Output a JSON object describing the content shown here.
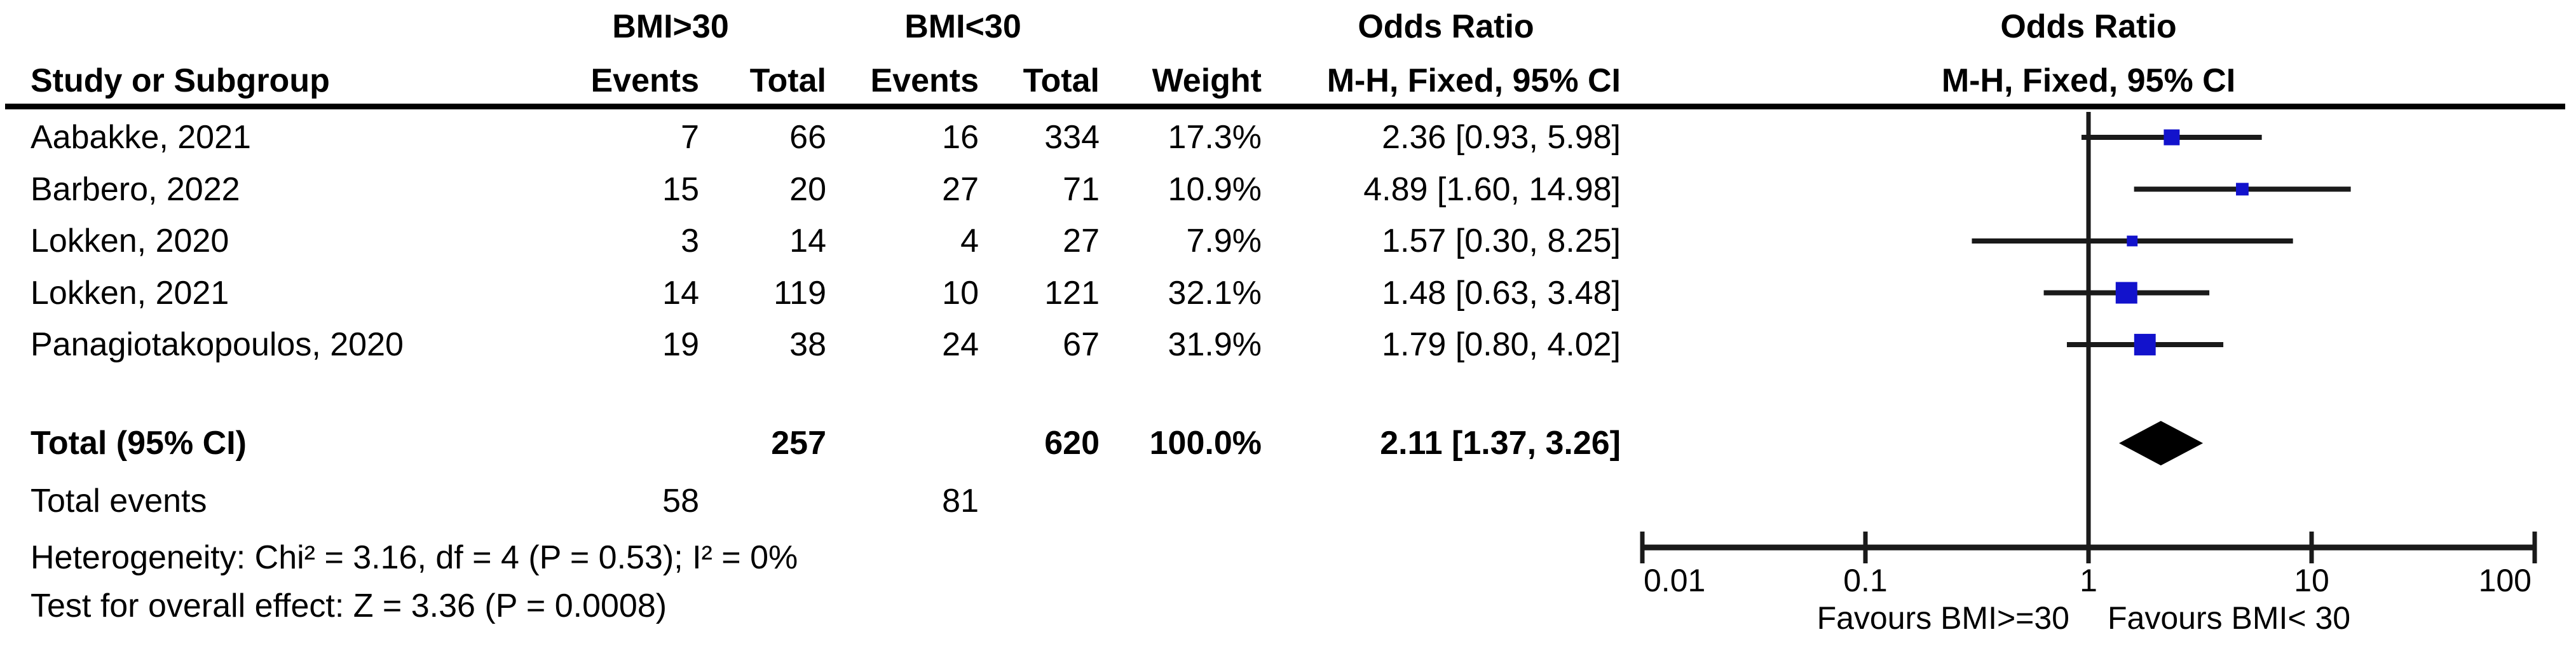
{
  "table": {
    "group1_label": "BMI>30",
    "group2_label": "BMI<30",
    "or_col_title": "Odds Ratio",
    "plot_col_title": "Odds Ratio",
    "method_label": "M-H, Fixed, 95% CI",
    "plot_method_label": "M-H, Fixed, 95% CI",
    "headers": {
      "study": "Study or Subgroup",
      "events1": "Events",
      "total1": "Total",
      "events2": "Events",
      "total2": "Total",
      "weight": "Weight"
    },
    "rows": [
      {
        "study": "Aabakke, 2021",
        "events1": "7",
        "total1": "66",
        "events2": "16",
        "total2": "334",
        "weight": "17.3%",
        "or_text": "2.36 [0.93, 5.98]"
      },
      {
        "study": "Barbero, 2022",
        "events1": "15",
        "total1": "20",
        "events2": "27",
        "total2": "71",
        "weight": "10.9%",
        "or_text": "4.89 [1.60, 14.98]"
      },
      {
        "study": "Lokken, 2020",
        "events1": "3",
        "total1": "14",
        "events2": "4",
        "total2": "27",
        "weight": "7.9%",
        "or_text": "1.57 [0.30, 8.25]"
      },
      {
        "study": "Lokken, 2021",
        "events1": "14",
        "total1": "119",
        "events2": "10",
        "total2": "121",
        "weight": "32.1%",
        "or_text": "1.48 [0.63, 3.48]"
      },
      {
        "study": "Panagiotakopoulos, 2020",
        "events1": "19",
        "total1": "38",
        "events2": "24",
        "total2": "67",
        "weight": "31.9%",
        "or_text": "1.79 [0.80, 4.02]"
      }
    ],
    "total_row": {
      "label": "Total (95% CI)",
      "total1": "257",
      "total2": "620",
      "weight": "100.0%",
      "or_text": "2.11 [1.37, 3.26]"
    },
    "total_events_row": {
      "label": "Total events",
      "events1": "58",
      "events2": "81"
    },
    "heterogeneity": "Heterogeneity: Chi² = 3.16, df = 4 (P = 0.53); I² = 0%",
    "overall_effect": "Test for overall effect: Z = 3.36 (P = 0.0008)"
  },
  "chart_data": {
    "type": "forest",
    "effect_measure": "Odds Ratio",
    "method": "M-H, Fixed, 95% CI",
    "x_axis": {
      "scale": "log10",
      "ticks": [
        0.01,
        0.1,
        1,
        10,
        100
      ],
      "tick_labels": [
        "0.01",
        "0.1",
        "1",
        "10",
        "100"
      ]
    },
    "studies": [
      {
        "name": "Aabakke, 2021",
        "or": 2.36,
        "ci_low": 0.93,
        "ci_high": 5.98,
        "weight_pct": 17.3
      },
      {
        "name": "Barbero, 2022",
        "or": 4.89,
        "ci_low": 1.6,
        "ci_high": 14.98,
        "weight_pct": 10.9
      },
      {
        "name": "Lokken, 2020",
        "or": 1.57,
        "ci_low": 0.3,
        "ci_high": 8.25,
        "weight_pct": 7.9
      },
      {
        "name": "Lokken, 2021",
        "or": 1.48,
        "ci_low": 0.63,
        "ci_high": 3.48,
        "weight_pct": 32.1
      },
      {
        "name": "Panagiotakopoulos, 2020",
        "or": 1.79,
        "ci_low": 0.8,
        "ci_high": 4.02,
        "weight_pct": 31.9
      }
    ],
    "total": {
      "or": 2.11,
      "ci_low": 1.37,
      "ci_high": 3.26
    },
    "favours_left": "Favours BMI>=30",
    "favours_right": "Favours BMI< 30",
    "marker_color": "#1212CC",
    "line_color": "#1A1A1A",
    "diamond_color": "#000000"
  }
}
